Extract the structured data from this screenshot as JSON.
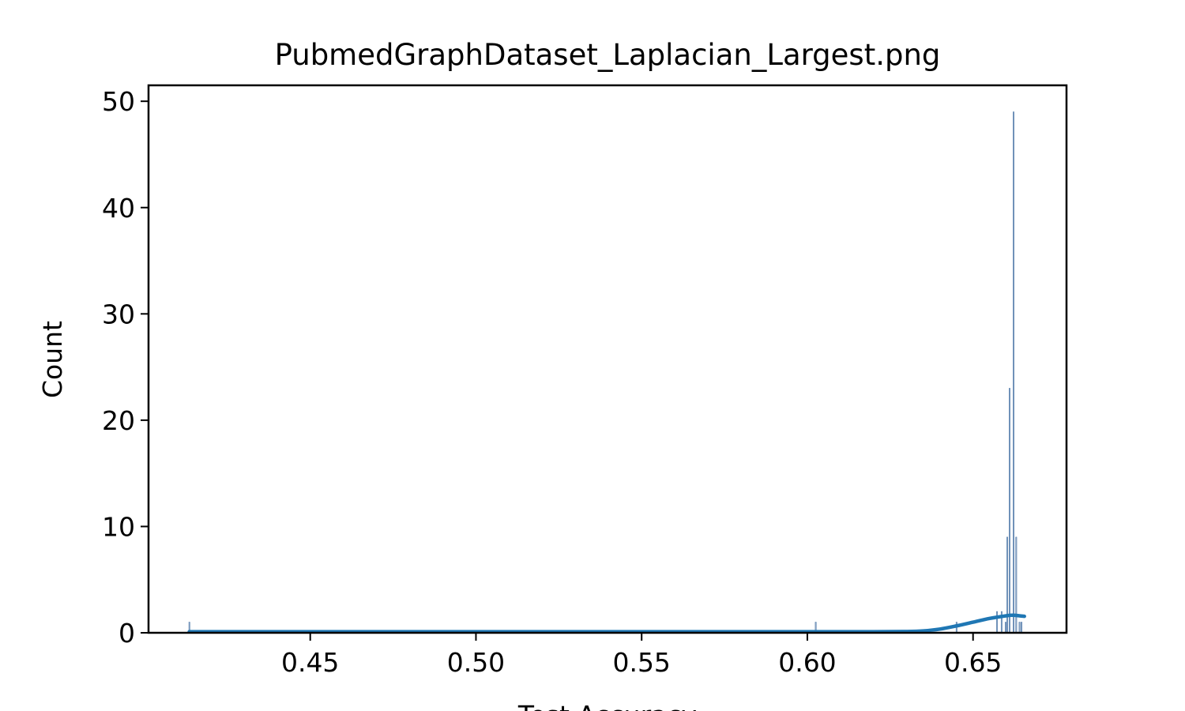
{
  "chart_data": {
    "type": "bar",
    "title": "PubmedGraphDataset_Laplacian_Largest.png",
    "xlabel": "Test Accuracy",
    "ylabel": "Count",
    "xlim": [
      0.4012,
      0.6782
    ],
    "ylim": [
      0,
      51.5
    ],
    "xticks": [
      0.45,
      0.5,
      0.55,
      0.6,
      0.65
    ],
    "xtick_labels": [
      "0.45",
      "0.50",
      "0.55",
      "0.60",
      "0.65"
    ],
    "yticks": [
      0,
      10,
      20,
      30,
      40,
      50
    ],
    "ytick_labels": [
      "0",
      "10",
      "20",
      "30",
      "40",
      "50"
    ],
    "grid": false,
    "bin_width": 0.00025,
    "histogram": {
      "x": [
        0.4135,
        0.6025,
        0.645,
        0.6572,
        0.6586,
        0.6598,
        0.6603,
        0.661,
        0.6622,
        0.663,
        0.664,
        0.6646
      ],
      "counts": [
        1,
        1,
        1,
        2,
        2,
        1,
        9,
        23,
        49,
        9,
        1,
        1
      ]
    },
    "kde": {
      "x": [
        0.4135,
        0.45,
        0.5,
        0.55,
        0.6,
        0.62,
        0.63,
        0.635,
        0.64,
        0.645,
        0.65,
        0.655,
        0.66,
        0.662,
        0.664,
        0.6655
      ],
      "y": [
        0.1,
        0.1,
        0.1,
        0.1,
        0.1,
        0.1,
        0.12,
        0.18,
        0.35,
        0.65,
        1.0,
        1.35,
        1.6,
        1.65,
        1.6,
        1.55
      ]
    },
    "colors": {
      "bar_fill": "#9fb3cf",
      "bar_edge": "#4c78a8",
      "kde_line": "#1f77b4",
      "axes": "#000000",
      "background": "#ffffff"
    }
  }
}
